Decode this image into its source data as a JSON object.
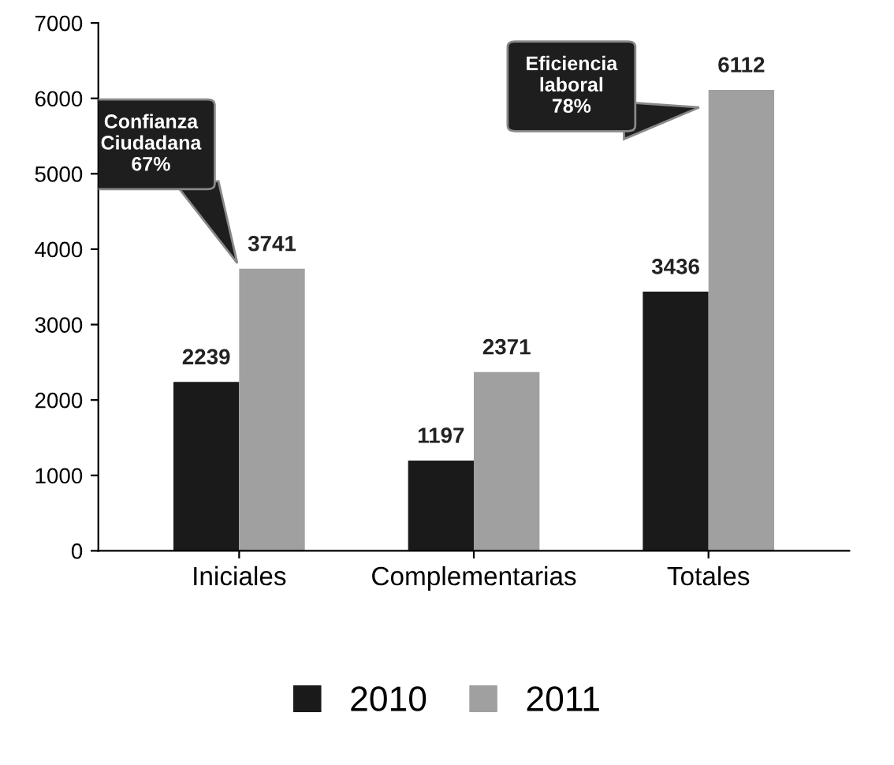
{
  "chart_data": {
    "type": "bar",
    "categories": [
      "Iniciales",
      "Complementarias",
      "Totales"
    ],
    "series": [
      {
        "name": "2010",
        "color": "#1a1a1a",
        "values": [
          2239,
          1197,
          3436
        ]
      },
      {
        "name": "2011",
        "color": "#a0a0a0",
        "values": [
          3741,
          2371,
          6112
        ]
      }
    ],
    "ylim": [
      0,
      7000
    ],
    "yticks": [
      0,
      1000,
      2000,
      3000,
      4000,
      5000,
      6000,
      7000
    ],
    "grid": false,
    "legend": "bottom",
    "data_labels": true,
    "annotations": [
      "Confianza\nCiudadana\n67%",
      "Eficiencia\nlaboral\n78%"
    ]
  }
}
